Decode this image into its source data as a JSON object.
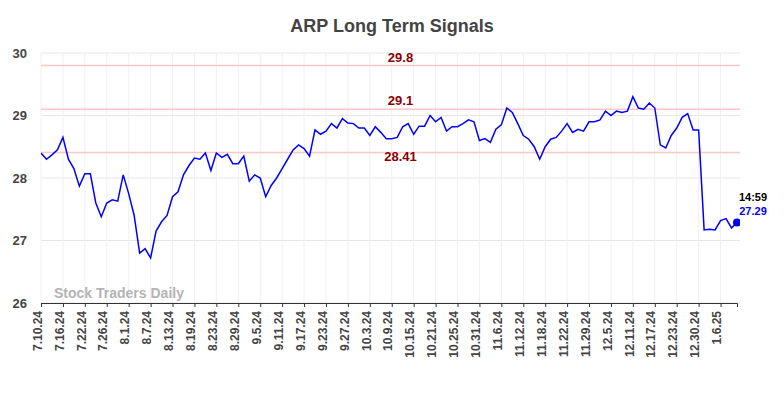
{
  "chart_data": {
    "type": "line",
    "title": "ARP Long Term Signals",
    "watermark": "Stock Traders Daily",
    "time_label": "14:59",
    "color": "#0000ff",
    "grid": true,
    "ylim": [
      26,
      30
    ],
    "yticks": [
      26,
      27,
      28,
      29,
      30
    ],
    "reference_lines": [
      29.8,
      29.1,
      28.41
    ],
    "categories": [
      "7.10.24",
      null,
      null,
      null,
      "7.16.24",
      null,
      null,
      null,
      "7.22.24",
      null,
      null,
      null,
      "7.26.24",
      null,
      null,
      null,
      "8.1.24",
      null,
      null,
      null,
      "8.7.24",
      null,
      null,
      null,
      "8.13.24",
      null,
      null,
      null,
      "8.19.24",
      null,
      null,
      null,
      "8.23.24",
      null,
      null,
      null,
      "8.29.24",
      null,
      null,
      null,
      "9.5.24",
      null,
      null,
      null,
      "9.11.24",
      null,
      null,
      null,
      "9.17.24",
      null,
      null,
      null,
      "9.23.24",
      null,
      null,
      null,
      "9.27.24",
      null,
      null,
      null,
      "10.3.24",
      null,
      null,
      null,
      "10.9.24",
      null,
      null,
      null,
      "10.15.24",
      null,
      null,
      null,
      "10.21.24",
      null,
      null,
      null,
      "10.25.24",
      null,
      null,
      null,
      "10.31.24",
      null,
      null,
      null,
      "11.6.24",
      null,
      null,
      null,
      "11.12.24",
      null,
      null,
      null,
      "11.18.24",
      null,
      null,
      null,
      "11.22.24",
      null,
      null,
      null,
      "11.29.24",
      null,
      null,
      null,
      "12.5.24",
      null,
      null,
      null,
      "12.11.24",
      null,
      null,
      null,
      "12.17.24",
      null,
      null,
      null,
      "12.23.24",
      null,
      null,
      null,
      "12.30.24",
      null,
      null,
      null,
      "1.6.25",
      null,
      null,
      null
    ],
    "values": [
      28.4,
      28.3,
      28.37,
      28.45,
      28.65,
      28.3,
      28.15,
      27.87,
      28.07,
      28.07,
      27.6,
      27.38,
      27.6,
      27.65,
      27.63,
      28.05,
      27.75,
      27.4,
      26.8,
      26.87,
      26.72,
      27.15,
      27.3,
      27.4,
      27.7,
      27.78,
      28.05,
      28.2,
      28.32,
      28.3,
      28.4,
      28.12,
      28.4,
      28.33,
      28.38,
      28.23,
      28.23,
      28.35,
      27.95,
      28.05,
      28.0,
      27.7,
      27.88,
      28.0,
      28.15,
      28.3,
      28.45,
      28.53,
      28.47,
      28.35,
      28.77,
      28.7,
      28.75,
      28.87,
      28.8,
      28.95,
      28.88,
      28.87,
      28.8,
      28.8,
      28.68,
      28.82,
      28.73,
      28.63,
      28.63,
      28.65,
      28.82,
      28.87,
      28.7,
      28.83,
      28.83,
      29.0,
      28.9,
      28.97,
      28.75,
      28.82,
      28.82,
      28.87,
      28.93,
      28.9,
      28.6,
      28.63,
      28.57,
      28.78,
      28.85,
      29.12,
      29.05,
      28.87,
      28.68,
      28.62,
      28.5,
      28.3,
      28.5,
      28.62,
      28.65,
      28.75,
      28.87,
      28.73,
      28.78,
      28.75,
      28.9,
      28.9,
      28.93,
      29.07,
      29.0,
      29.07,
      29.05,
      29.07,
      29.3,
      29.12,
      29.1,
      29.2,
      29.12,
      28.53,
      28.48,
      28.68,
      28.8,
      28.97,
      29.03,
      28.77,
      28.77,
      27.17,
      27.18,
      27.17,
      27.32,
      27.35,
      27.2,
      27.29
    ]
  }
}
